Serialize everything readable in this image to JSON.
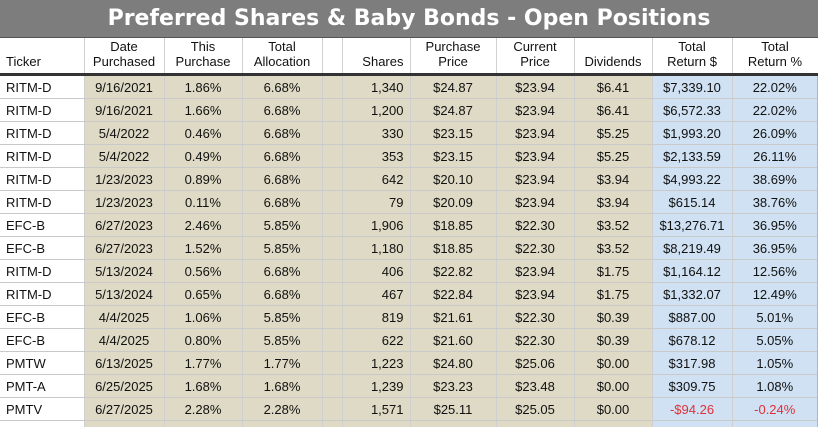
{
  "title": "Preferred Shares & Baby Bonds - Open Positions",
  "headers": {
    "ticker": "Ticker",
    "date_purchased": [
      "Date",
      "Purchased"
    ],
    "this_purchase": [
      "This",
      "Purchase"
    ],
    "total_allocation": [
      "Total",
      "Allocation"
    ],
    "blank": "",
    "shares": "Shares",
    "purchase_price": [
      "Purchase",
      "Price"
    ],
    "current_price": [
      "Current",
      "Price"
    ],
    "dividends": "Dividends",
    "total_return_usd": [
      "Total",
      "Return $"
    ],
    "total_return_pct": [
      "Total",
      "Return %"
    ]
  },
  "colors": {
    "title_bg": "#7d7d7d",
    "tan": "#dedac5",
    "blue": "#cfe1f2",
    "negative": "#e0303a"
  },
  "rows": [
    {
      "ticker": "RITM-D",
      "date": "9/16/2021",
      "this_purchase": "1.86%",
      "total_allocation": "6.68%",
      "shares": "1,340",
      "purchase_price": "$24.87",
      "current_price": "$23.94",
      "dividends": "$6.41",
      "return_usd": "$7,339.10",
      "return_pct": "22.02%",
      "negative": false
    },
    {
      "ticker": "RITM-D",
      "date": "9/16/2021",
      "this_purchase": "1.66%",
      "total_allocation": "6.68%",
      "shares": "1,200",
      "purchase_price": "$24.87",
      "current_price": "$23.94",
      "dividends": "$6.41",
      "return_usd": "$6,572.33",
      "return_pct": "22.02%",
      "negative": false
    },
    {
      "ticker": "RITM-D",
      "date": "5/4/2022",
      "this_purchase": "0.46%",
      "total_allocation": "6.68%",
      "shares": "330",
      "purchase_price": "$23.15",
      "current_price": "$23.94",
      "dividends": "$5.25",
      "return_usd": "$1,993.20",
      "return_pct": "26.09%",
      "negative": false
    },
    {
      "ticker": "RITM-D",
      "date": "5/4/2022",
      "this_purchase": "0.49%",
      "total_allocation": "6.68%",
      "shares": "353",
      "purchase_price": "$23.15",
      "current_price": "$23.94",
      "dividends": "$5.25",
      "return_usd": "$2,133.59",
      "return_pct": "26.11%",
      "negative": false
    },
    {
      "ticker": "RITM-D",
      "date": "1/23/2023",
      "this_purchase": "0.89%",
      "total_allocation": "6.68%",
      "shares": "642",
      "purchase_price": "$20.10",
      "current_price": "$23.94",
      "dividends": "$3.94",
      "return_usd": "$4,993.22",
      "return_pct": "38.69%",
      "negative": false
    },
    {
      "ticker": "RITM-D",
      "date": "1/23/2023",
      "this_purchase": "0.11%",
      "total_allocation": "6.68%",
      "shares": "79",
      "purchase_price": "$20.09",
      "current_price": "$23.94",
      "dividends": "$3.94",
      "return_usd": "$615.14",
      "return_pct": "38.76%",
      "negative": false
    },
    {
      "ticker": "EFC-B",
      "date": "6/27/2023",
      "this_purchase": "2.46%",
      "total_allocation": "5.85%",
      "shares": "1,906",
      "purchase_price": "$18.85",
      "current_price": "$22.30",
      "dividends": "$3.52",
      "return_usd": "$13,276.71",
      "return_pct": "36.95%",
      "negative": false
    },
    {
      "ticker": "EFC-B",
      "date": "6/27/2023",
      "this_purchase": "1.52%",
      "total_allocation": "5.85%",
      "shares": "1,180",
      "purchase_price": "$18.85",
      "current_price": "$22.30",
      "dividends": "$3.52",
      "return_usd": "$8,219.49",
      "return_pct": "36.95%",
      "negative": false
    },
    {
      "ticker": "RITM-D",
      "date": "5/13/2024",
      "this_purchase": "0.56%",
      "total_allocation": "6.68%",
      "shares": "406",
      "purchase_price": "$22.82",
      "current_price": "$23.94",
      "dividends": "$1.75",
      "return_usd": "$1,164.12",
      "return_pct": "12.56%",
      "negative": false
    },
    {
      "ticker": "RITM-D",
      "date": "5/13/2024",
      "this_purchase": "0.65%",
      "total_allocation": "6.68%",
      "shares": "467",
      "purchase_price": "$22.84",
      "current_price": "$23.94",
      "dividends": "$1.75",
      "return_usd": "$1,332.07",
      "return_pct": "12.49%",
      "negative": false
    },
    {
      "ticker": "EFC-B",
      "date": "4/4/2025",
      "this_purchase": "1.06%",
      "total_allocation": "5.85%",
      "shares": "819",
      "purchase_price": "$21.61",
      "current_price": "$22.30",
      "dividends": "$0.39",
      "return_usd": "$887.00",
      "return_pct": "5.01%",
      "negative": false
    },
    {
      "ticker": "EFC-B",
      "date": "4/4/2025",
      "this_purchase": "0.80%",
      "total_allocation": "5.85%",
      "shares": "622",
      "purchase_price": "$21.60",
      "current_price": "$22.30",
      "dividends": "$0.39",
      "return_usd": "$678.12",
      "return_pct": "5.05%",
      "negative": false
    },
    {
      "ticker": "PMTW",
      "date": "6/13/2025",
      "this_purchase": "1.77%",
      "total_allocation": "1.77%",
      "shares": "1,223",
      "purchase_price": "$24.80",
      "current_price": "$25.06",
      "dividends": "$0.00",
      "return_usd": "$317.98",
      "return_pct": "1.05%",
      "negative": false
    },
    {
      "ticker": "PMT-A",
      "date": "6/25/2025",
      "this_purchase": "1.68%",
      "total_allocation": "1.68%",
      "shares": "1,239",
      "purchase_price": "$23.23",
      "current_price": "$23.48",
      "dividends": "$0.00",
      "return_usd": "$309.75",
      "return_pct": "1.08%",
      "negative": false
    },
    {
      "ticker": "PMTV",
      "date": "6/27/2025",
      "this_purchase": "2.28%",
      "total_allocation": "2.28%",
      "shares": "1,571",
      "purchase_price": "$25.11",
      "current_price": "$25.05",
      "dividends": "$0.00",
      "return_usd": "-$94.26",
      "return_pct": "-0.24%",
      "negative": true
    }
  ]
}
